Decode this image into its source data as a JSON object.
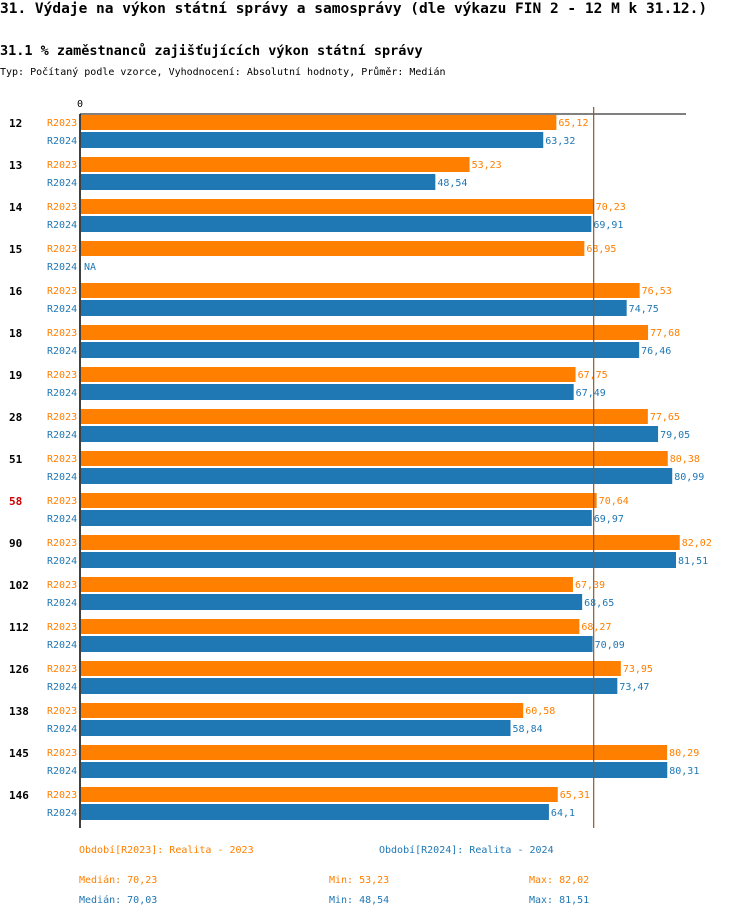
{
  "title": "31. Výdaje na výkon státní správy a samosprávy (dle výkazu FIN 2 - 12 M k 31.12.)",
  "subtitle": "31.1 % zaměstnanců zajišťujících výkon státní správy",
  "meta": "Typ: Počítaný podle vzorce, Vyhodnocení: Absolutní hodnoty, Průměr: Medián",
  "colors": {
    "r2023": "#ff7f00",
    "r2024": "#1f77b4",
    "highlight": "#cc0000",
    "median_line": "#8b5a2b"
  },
  "chart_data": {
    "type": "bar",
    "orientation": "horizontal",
    "axis_label_zero": "0",
    "xlim": [
      0,
      83
    ],
    "median_reference": 70.23,
    "highlight_category": "58",
    "categories": [
      "12",
      "13",
      "14",
      "15",
      "16",
      "18",
      "19",
      "28",
      "51",
      "58",
      "90",
      "102",
      "112",
      "126",
      "138",
      "145",
      "146"
    ],
    "series": [
      {
        "name": "R2023",
        "values": [
          65.12,
          53.23,
          70.23,
          68.95,
          76.53,
          77.68,
          67.75,
          77.65,
          80.38,
          70.64,
          82.02,
          67.39,
          68.27,
          73.95,
          60.58,
          80.29,
          65.31
        ],
        "labels": [
          "65,12",
          "53,23",
          "70,23",
          "68,95",
          "76,53",
          "77,68",
          "67,75",
          "77,65",
          "80,38",
          "70,64",
          "82,02",
          "67,39",
          "68,27",
          "73,95",
          "60,58",
          "80,29",
          "65,31"
        ]
      },
      {
        "name": "R2024",
        "values": [
          63.32,
          48.54,
          69.91,
          null,
          74.75,
          76.46,
          67.49,
          79.05,
          80.99,
          69.97,
          81.51,
          68.65,
          70.09,
          73.47,
          58.84,
          80.31,
          64.1
        ],
        "labels": [
          "63,32",
          "48,54",
          "69,91",
          "NA",
          "74,75",
          "76,46",
          "67,49",
          "79,05",
          "80,99",
          "69,97",
          "81,51",
          "68,65",
          "70,09",
          "73,47",
          "58,84",
          "80,31",
          "64,1"
        ]
      }
    ]
  },
  "legend": {
    "r2023_label": "Období[R2023]: Realita - 2023",
    "r2024_label": "Období[R2024]: Realita - 2024",
    "r2023_median": "Medián: 70,23",
    "r2023_min": "Min: 53,23",
    "r2023_max": "Max: 82,02",
    "r2024_median": "Medián: 70,03",
    "r2024_min": "Min: 48,54",
    "r2024_max": "Max: 81,51"
  }
}
